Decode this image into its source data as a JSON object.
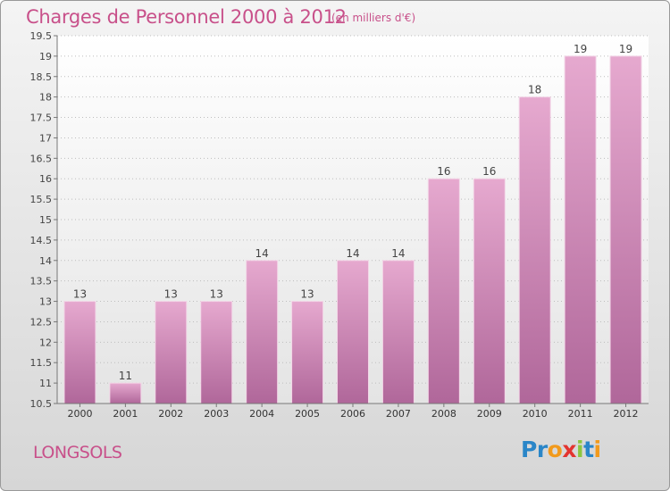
{
  "header": {
    "title": "Charges de Personnel 2000 à 2012",
    "subtitle": "(en milliers d'€)"
  },
  "footer": {
    "commune": "LONGSOLS",
    "logo_text": "Proxiti",
    "logo_letters": [
      {
        "ch": "P",
        "color": "#2a86c8"
      },
      {
        "ch": "r",
        "color": "#2a86c8"
      },
      {
        "ch": "o",
        "color": "#f29a1c"
      },
      {
        "ch": "x",
        "color": "#e3342f"
      },
      {
        "ch": "i",
        "color": "#8cc63f"
      },
      {
        "ch": "t",
        "color": "#2a86c8"
      },
      {
        "ch": "i",
        "color": "#f29a1c"
      }
    ]
  },
  "colors": {
    "bar_top": "#e6a9cf",
    "bar_bottom": "#b0679a",
    "title": "#c8508a",
    "grid": "#bdbdbd"
  },
  "chart_data": {
    "type": "bar",
    "title": "Charges de Personnel 2000 à 2012",
    "subtitle": "(en milliers d'€)",
    "categories": [
      "2000",
      "2001",
      "2002",
      "2003",
      "2004",
      "2005",
      "2006",
      "2007",
      "2008",
      "2009",
      "2010",
      "2011",
      "2012"
    ],
    "values": [
      13,
      11,
      13,
      13,
      14,
      13,
      14,
      14,
      16,
      16,
      18,
      19,
      19
    ],
    "value_labels": [
      "13",
      "11",
      "13",
      "13",
      "14",
      "13",
      "14",
      "14",
      "16",
      "16",
      "18",
      "19",
      "19"
    ],
    "ylim": [
      10.5,
      19.5
    ],
    "yticks": [
      "10.5",
      "11",
      "11.5",
      "12",
      "12.5",
      "13",
      "13.5",
      "14",
      "14.5",
      "15",
      "15.5",
      "16",
      "16.5",
      "17",
      "17.5",
      "18",
      "18.5",
      "19",
      "19.5"
    ],
    "xlabel": "",
    "ylabel": "",
    "grid": true
  }
}
